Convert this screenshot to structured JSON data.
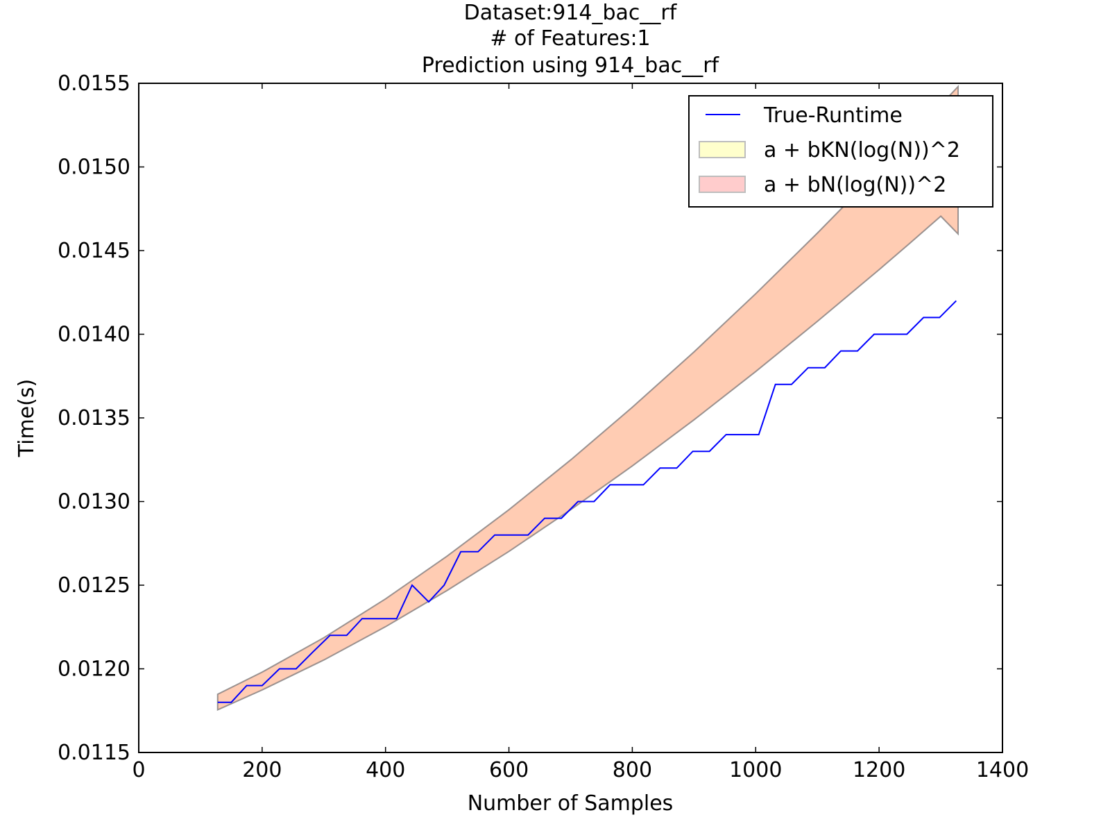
{
  "chart_data": {
    "type": "line",
    "title_lines": [
      "Dataset:914_bac__rf",
      "# of Features:1",
      "Prediction using 914_bac__rf"
    ],
    "xlabel": "Number of Samples",
    "ylabel": "Time(s)",
    "xlim": [
      0,
      1400
    ],
    "ylim": [
      0.0115,
      0.0155
    ],
    "xticks": [
      0,
      200,
      400,
      600,
      800,
      1000,
      1200,
      1400
    ],
    "xtick_labels": [
      "0",
      "200",
      "400",
      "600",
      "800",
      "1000",
      "1200",
      "1400"
    ],
    "yticks": [
      0.0115,
      0.012,
      0.0125,
      0.013,
      0.0135,
      0.014,
      0.0145,
      0.015,
      0.0155
    ],
    "ytick_labels": [
      "0.0115",
      "0.0120",
      "0.0125",
      "0.0130",
      "0.0135",
      "0.0140",
      "0.0145",
      "0.0150",
      "0.0155"
    ],
    "legend_position": "top-right",
    "series": [
      {
        "name": "True-Runtime",
        "kind": "line",
        "color": "#0000ff",
        "x": [
          128,
          150,
          175,
          200,
          228,
          255,
          282,
          310,
          337,
          362,
          390,
          418,
          443,
          470,
          495,
          522,
          550,
          577,
          604,
          631,
          658,
          685,
          712,
          738,
          764,
          792,
          818,
          845,
          872,
          898,
          925,
          952,
          978,
          1005,
          1032,
          1058,
          1085,
          1112,
          1138,
          1165,
          1192,
          1218,
          1245,
          1272,
          1298,
          1325
        ],
        "y": [
          0.0118,
          0.0118,
          0.0119,
          0.0119,
          0.012,
          0.012,
          0.0121,
          0.0122,
          0.0122,
          0.0123,
          0.0123,
          0.0123,
          0.0125,
          0.0124,
          0.0125,
          0.0127,
          0.0127,
          0.0128,
          0.0128,
          0.0128,
          0.0129,
          0.0129,
          0.013,
          0.013,
          0.0131,
          0.0131,
          0.0131,
          0.0132,
          0.0132,
          0.0133,
          0.0133,
          0.0134,
          0.0134,
          0.0134,
          0.0137,
          0.0137,
          0.0138,
          0.0138,
          0.0139,
          0.0139,
          0.014,
          0.014,
          0.014,
          0.0141,
          0.0141,
          0.0142
        ]
      },
      {
        "name": "a + bKN(log(N))^2",
        "kind": "band",
        "color": "#ffff99",
        "x": [
          128,
          200,
          300,
          400,
          500,
          600,
          700,
          800,
          900,
          1000,
          1100,
          1200,
          1250,
          1300,
          1328
        ],
        "lower": [
          0.011755,
          0.011874,
          0.012053,
          0.012252,
          0.012469,
          0.012702,
          0.012951,
          0.013213,
          0.013489,
          0.013777,
          0.014077,
          0.014386,
          0.014545,
          0.014706,
          0.0146
        ],
        "upper": [
          0.011848,
          0.01198,
          0.012186,
          0.012418,
          0.012674,
          0.012951,
          0.013248,
          0.013563,
          0.013894,
          0.014242,
          0.014604,
          0.01498,
          0.015174,
          0.01537,
          0.01548
        ]
      },
      {
        "name": "a + bN(log(N))^2",
        "kind": "band",
        "color": "#ff9999",
        "x": [
          128,
          200,
          300,
          400,
          500,
          600,
          700,
          800,
          900,
          1000,
          1100,
          1200,
          1250,
          1300,
          1328
        ],
        "lower": [
          0.011755,
          0.011874,
          0.012053,
          0.012252,
          0.012469,
          0.012702,
          0.012951,
          0.013213,
          0.013489,
          0.013777,
          0.014077,
          0.014386,
          0.014545,
          0.014706,
          0.0146
        ],
        "upper": [
          0.011848,
          0.01198,
          0.012186,
          0.012418,
          0.012674,
          0.012951,
          0.013248,
          0.013563,
          0.013894,
          0.014242,
          0.014604,
          0.01498,
          0.015174,
          0.01537,
          0.01548
        ]
      }
    ]
  }
}
